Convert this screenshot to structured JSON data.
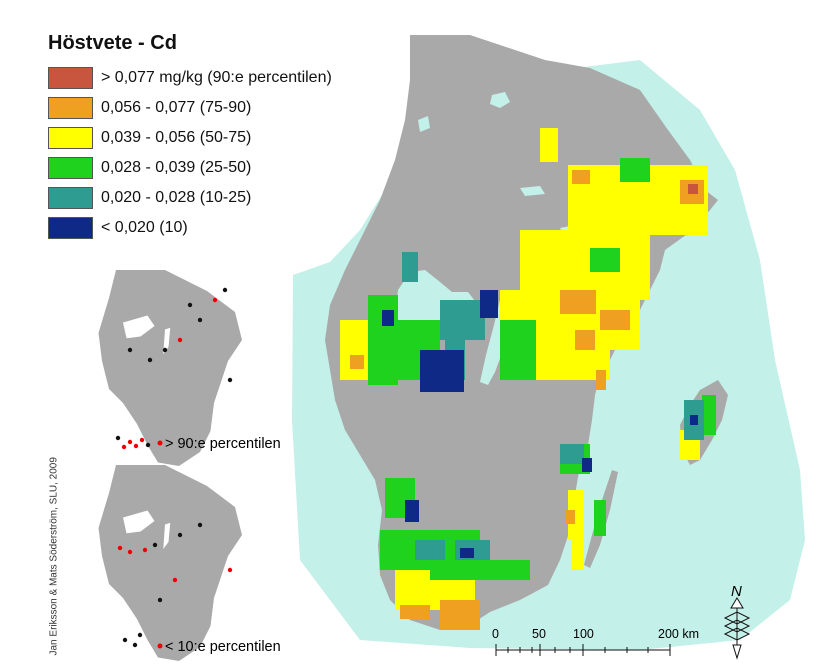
{
  "title": "Höstvete - Cd",
  "legend": [
    {
      "label": "> 0,077 mg/kg (90:e percentilen)",
      "color": "#c8553d"
    },
    {
      "label": "0,056 - 0,077 (75-90)",
      "color": "#f0a020"
    },
    {
      "label": "0,039 - 0,056 (50-75)",
      "color": "#ffff00"
    },
    {
      "label": "0,028 - 0,039 (25-50)",
      "color": "#1ed21e"
    },
    {
      "label": "0,020 - 0,028 (10-25)",
      "color": "#2e9c90"
    },
    {
      "label": "< 0,020 (10)",
      "color": "#0e2a86"
    }
  ],
  "insets": [
    {
      "caption": "> 90:e percentilen"
    },
    {
      "caption": "< 10:e percentilen"
    }
  ],
  "credit": "Jan Eriksson & Mats Söderström, SLU, 2009",
  "scale": {
    "labels": [
      "0",
      "50",
      "100",
      "200 km"
    ]
  },
  "north_label": "N",
  "colors": {
    "land": "#a9a9a9",
    "sea": "#c3f0e8",
    "water": "#c3f0e8"
  }
}
